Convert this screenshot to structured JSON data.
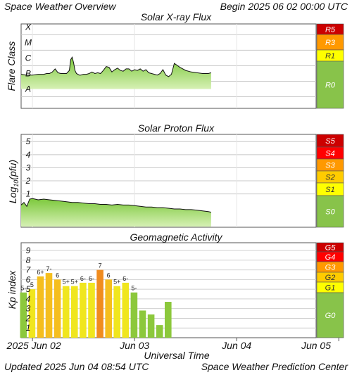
{
  "header": {
    "title": "Space Weather Overview",
    "begin": "Begin 2025 06 02 00:00 UTC"
  },
  "footer": {
    "updated": "Updated 2025 Jun 04 08:54 UTC",
    "credit": "Space Weather Prediction Center"
  },
  "colors": {
    "fill_light": "#d6f0b4",
    "fill_dark": "#7cc83c",
    "kp_green": "#8cc83c",
    "kp_yellow": "#f0e61e",
    "kp_gold": "#f5be1e",
    "kp_orange": "#f08c1e",
    "panel_border": "#555555"
  },
  "chart_data": [
    {
      "type": "area",
      "title": "Solar X-ray Flux",
      "ylabel": "Flare Class",
      "xlabel": "",
      "y_ticks": [
        "X",
        "M",
        "C",
        "B",
        "A"
      ],
      "y_scale": "log",
      "ylim": [
        -8.75,
        -3.3
      ],
      "x_unit": "hours since 2025 Jun 02 00:00 UTC",
      "xlim": [
        -8,
        200
      ],
      "x": [
        -8,
        -4,
        0,
        4,
        8,
        10,
        12,
        14,
        15,
        16,
        18,
        20,
        22,
        24,
        26,
        27,
        28,
        29,
        30,
        31,
        32,
        33,
        34,
        36,
        38,
        40,
        42,
        44,
        46,
        48,
        50,
        52,
        54,
        56,
        58,
        60,
        62,
        64,
        66,
        68,
        70,
        72,
        74,
        76,
        78,
        80,
        82,
        84,
        86,
        88,
        90,
        92,
        94,
        96,
        98,
        100,
        104,
        108,
        112,
        116,
        120,
        124,
        126
      ],
      "y": [
        -6.55,
        -6.6,
        -6.6,
        -6.55,
        -6.55,
        -6.5,
        -6.5,
        -6.4,
        -6.3,
        -6.2,
        -6.45,
        -6.5,
        -6.5,
        -6.5,
        -6.3,
        -5.6,
        -5.45,
        -5.8,
        -6.3,
        -6.5,
        -6.55,
        -6.6,
        -6.6,
        -6.55,
        -6.55,
        -6.5,
        -6.4,
        -6.5,
        -6.45,
        -6.5,
        -6.3,
        -6.05,
        -6.1,
        -6.4,
        -6.25,
        -6.15,
        -6.3,
        -6.35,
        -6.2,
        -6.2,
        -6.35,
        -6.25,
        -6.3,
        -6.2,
        -6.35,
        -6.25,
        -6.45,
        -6.5,
        -6.55,
        -6.6,
        -6.5,
        -6.25,
        -6.6,
        -6.7,
        -6.55,
        -5.85,
        -6.1,
        -6.3,
        -6.4,
        -6.45,
        -6.5,
        -6.5,
        -6.45
      ],
      "scale": [
        {
          "label": "R5",
          "color": "#cc0000"
        },
        {
          "label": "R3",
          "color": "#ff9900"
        },
        {
          "label": "R1",
          "color": "#ffff00"
        },
        {
          "label": "R0",
          "color": "#88c34a"
        }
      ]
    },
    {
      "type": "area",
      "title": "Solar Proton Flux",
      "ylabel": "Log10(pfu)",
      "xlabel": "",
      "y_ticks": [
        "5",
        "4",
        "3",
        "2",
        "1"
      ],
      "ylim": [
        -1.55,
        5.55
      ],
      "x_unit": "hours since 2025 Jun 02 00:00 UTC",
      "xlim": [
        -8,
        200
      ],
      "x": [
        -8,
        -6,
        -4,
        -2,
        0,
        4,
        8,
        12,
        16,
        20,
        24,
        28,
        32,
        36,
        40,
        44,
        48,
        52,
        56,
        60,
        64,
        68,
        72,
        76,
        80,
        84,
        88,
        92,
        96,
        100,
        104,
        108,
        112,
        116,
        120,
        124,
        126
      ],
      "y": [
        0.15,
        0.35,
        0.05,
        0.6,
        0.65,
        0.55,
        0.6,
        0.55,
        0.5,
        0.45,
        0.4,
        0.35,
        0.35,
        0.3,
        0.25,
        0.25,
        0.2,
        0.2,
        0.15,
        0.2,
        0.15,
        0.15,
        0.1,
        0.05,
        0.0,
        0.0,
        -0.05,
        -0.05,
        -0.1,
        -0.15,
        -0.15,
        -0.2,
        -0.2,
        -0.25,
        -0.3,
        -0.35,
        -0.4
      ],
      "scale": [
        {
          "label": "S5",
          "color": "#cc0000"
        },
        {
          "label": "S4",
          "color": "#ff0000"
        },
        {
          "label": "S3",
          "color": "#ff9900"
        },
        {
          "label": "S2",
          "color": "#ffcc00"
        },
        {
          "label": "S1",
          "color": "#ffff00"
        },
        {
          "label": "S0",
          "color": "#88c34a"
        }
      ]
    },
    {
      "type": "bar",
      "title": "Geomagnetic Activity",
      "ylabel": "Kp index",
      "xlabel": "Universal Time",
      "y_ticks": [
        "9",
        "8",
        "7",
        "6",
        "5",
        "4",
        "3",
        "2",
        "1"
      ],
      "ylim": [
        0,
        9.8
      ],
      "x_unit": "hours since 2025 Jun 02 00:00 UTC",
      "xlim": [
        -8,
        200
      ],
      "x_ticks": [
        {
          "label": "2025 Jun 02",
          "at": 0
        },
        {
          "label": "Jun 03",
          "at": 72
        },
        {
          "label": "Jun 04",
          "at": 144
        },
        {
          "label": "Jun 05",
          "at": 216
        }
      ],
      "bars": [
        {
          "start": -9,
          "value": 4.67,
          "label": "5-"
        },
        {
          "start": -3,
          "value": 5.0,
          "label": "5"
        },
        {
          "start": 3,
          "value": 6.33,
          "label": "6+"
        },
        {
          "start": 9,
          "value": 6.67,
          "label": "7-"
        },
        {
          "start": 15,
          "value": 6.0,
          "label": "6"
        },
        {
          "start": 21,
          "value": 5.33,
          "label": "5+"
        },
        {
          "start": 27,
          "value": 5.33,
          "label": "5+"
        },
        {
          "start": 33,
          "value": 5.67,
          "label": "6-"
        },
        {
          "start": 39,
          "value": 5.67,
          "label": "6-"
        },
        {
          "start": 45,
          "value": 7.0,
          "label": "7"
        },
        {
          "start": 51,
          "value": 6.0,
          "label": "6"
        },
        {
          "start": 57,
          "value": 5.33,
          "label": "5+"
        },
        {
          "start": 63,
          "value": 5.67,
          "label": "6-"
        },
        {
          "start": 69,
          "value": 4.67,
          "label": "5-"
        },
        {
          "start": 75,
          "value": 2.8,
          "label": ""
        },
        {
          "start": 81,
          "value": 2.4,
          "label": ""
        },
        {
          "start": 87,
          "value": 1.3,
          "label": ""
        },
        {
          "start": 93,
          "value": 3.7,
          "label": ""
        }
      ],
      "scale": [
        {
          "label": "G5",
          "color": "#cc0000"
        },
        {
          "label": "G4",
          "color": "#ff0000"
        },
        {
          "label": "G3",
          "color": "#ff9900"
        },
        {
          "label": "G2",
          "color": "#ffcc00"
        },
        {
          "label": "G1",
          "color": "#ffff00"
        },
        {
          "label": "G0",
          "color": "#88c34a"
        }
      ]
    }
  ]
}
